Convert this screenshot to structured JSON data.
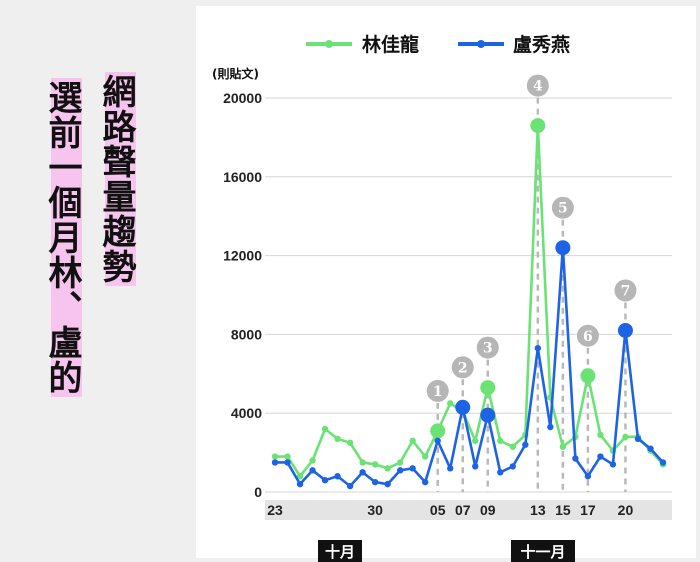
{
  "title": {
    "line1": "網路聲量趨勢",
    "line2": "選前一個月林、盧的"
  },
  "legend": [
    {
      "name": "林佳龍",
      "color": "#6be274"
    },
    {
      "name": "盧秀燕",
      "color": "#1d63e6"
    }
  ],
  "unit_label": "(則貼文)",
  "months": [
    "十月",
    "十一月"
  ],
  "chart_data": {
    "type": "line",
    "ylim": [
      0,
      20000
    ],
    "yticks": [
      0,
      4000,
      8000,
      12000,
      16000,
      20000
    ],
    "xlim": [
      0,
      32
    ],
    "x_ticks": [
      {
        "x": 0,
        "label": "23"
      },
      {
        "x": 8,
        "label": "30"
      },
      {
        "x": 13,
        "label": "05"
      },
      {
        "x": 15,
        "label": "07"
      },
      {
        "x": 17,
        "label": "09"
      },
      {
        "x": 21,
        "label": "13"
      },
      {
        "x": 23,
        "label": "15"
      },
      {
        "x": 25,
        "label": "17"
      },
      {
        "x": 28,
        "label": "20"
      }
    ],
    "series": [
      {
        "name": "林佳龍",
        "color": "#6be274",
        "values": [
          1800,
          1800,
          800,
          1600,
          3200,
          2700,
          2500,
          1500,
          1400,
          1200,
          1500,
          2600,
          1800,
          3100,
          4500,
          4100,
          2600,
          5300,
          2600,
          2300,
          2900,
          18600,
          4800,
          2300,
          2800,
          5900,
          2900,
          2100,
          2800,
          2800,
          2100,
          1400
        ],
        "highlight_index": [
          13,
          17,
          21,
          25
        ]
      },
      {
        "name": "盧秀燕",
        "color": "#1d63e6",
        "values": [
          1500,
          1500,
          400,
          1100,
          600,
          800,
          300,
          1000,
          500,
          400,
          1100,
          1200,
          500,
          2600,
          1200,
          4300,
          1300,
          3900,
          1000,
          1300,
          2400,
          7300,
          3300,
          12400,
          1700,
          800,
          1800,
          1400,
          8200,
          2700,
          2200,
          1500
        ],
        "highlight_index": [
          15,
          17,
          23,
          28
        ]
      }
    ],
    "annotations": [
      {
        "label": "1",
        "x": 13
      },
      {
        "label": "2",
        "x": 15
      },
      {
        "label": "3",
        "x": 17
      },
      {
        "label": "4",
        "x": 21
      },
      {
        "label": "5",
        "x": 23
      },
      {
        "label": "6",
        "x": 25
      },
      {
        "label": "7",
        "x": 28
      }
    ]
  }
}
